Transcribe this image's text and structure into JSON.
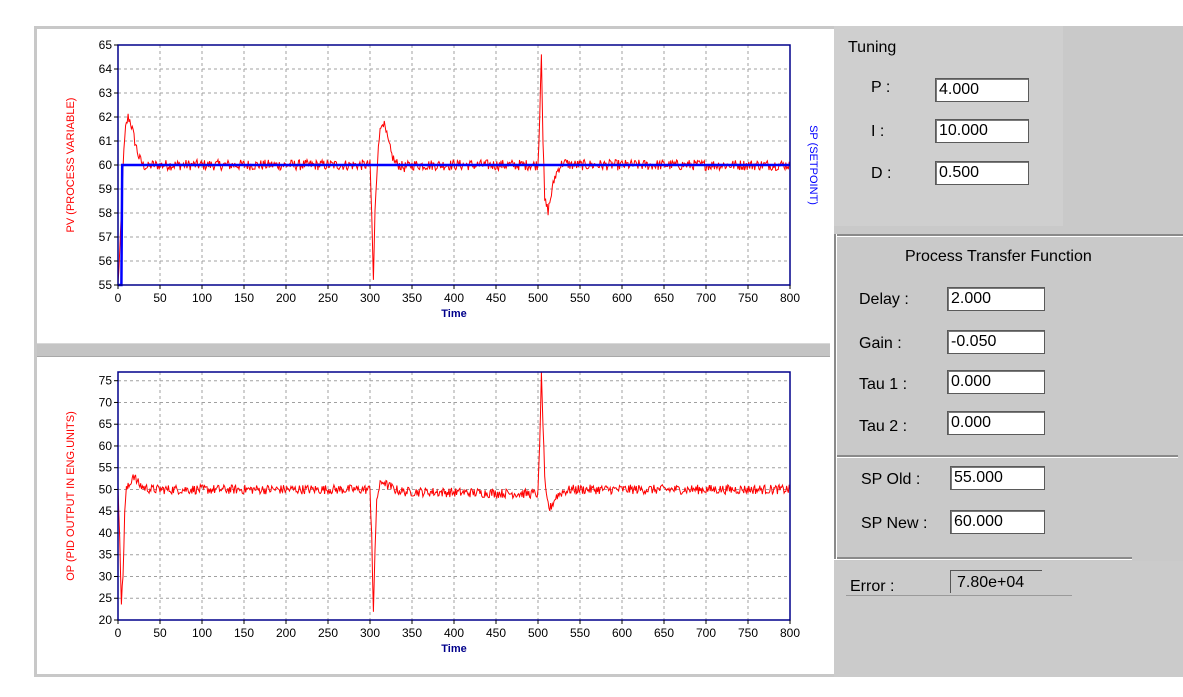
{
  "tuning": {
    "title": "Tuning",
    "p_label": "P :",
    "p_value": "4.000",
    "i_label": "I :",
    "i_value": "10.000",
    "d_label": "D :",
    "d_value": "0.500"
  },
  "transfer": {
    "title": "Process Transfer Function",
    "delay_label": "Delay :",
    "delay_value": "2.000",
    "gain_label": "Gain :",
    "gain_value": "-0.050",
    "tau1_label": "Tau 1 :",
    "tau1_value": "0.000",
    "tau2_label": "Tau 2 :",
    "tau2_value": "0.000"
  },
  "setpoint": {
    "old_label": "SP Old :",
    "old_value": "55.000",
    "new_label": "SP New :",
    "new_value": "60.000"
  },
  "error": {
    "label": "Error :",
    "value": "7.80e+04"
  },
  "colors": {
    "pv": "#ff0000",
    "sp": "#0000ff",
    "op": "#ff0000",
    "axis_frame": "#00008b",
    "grid": "#a0a0a0"
  },
  "chart_data": [
    {
      "type": "line",
      "xlabel": "Time",
      "ylabel": "PV (PROCESS VARIABLE)",
      "y2label": "SP (SETPOINT)",
      "xlim": [
        0,
        800
      ],
      "ylim": [
        55,
        65
      ],
      "xticks": [
        0,
        50,
        100,
        150,
        200,
        250,
        300,
        350,
        400,
        450,
        500,
        550,
        600,
        650,
        700,
        750,
        800
      ],
      "yticks": [
        55,
        56,
        57,
        58,
        59,
        60,
        61,
        62,
        63,
        64,
        65
      ],
      "grid": true,
      "series": [
        {
          "name": "PV (PROCESS VARIABLE)",
          "color": "#ff0000",
          "x": [
            0,
            3,
            6,
            9,
            12,
            15,
            20,
            25,
            30,
            35,
            40,
            300,
            302,
            304,
            306,
            310,
            315,
            320,
            325,
            330,
            340,
            350,
            500,
            502,
            504,
            506,
            508,
            512,
            516,
            520,
            525,
            530,
            540,
            550,
            800
          ],
          "y": [
            55,
            57,
            60,
            61.5,
            62,
            61.8,
            61,
            60.3,
            60,
            59.9,
            60,
            60,
            58,
            55.2,
            58,
            61,
            61.9,
            61.2,
            60.5,
            60.1,
            59.9,
            60,
            60,
            62,
            64.8,
            61,
            58.5,
            58.1,
            58.8,
            59.5,
            59.9,
            60.1,
            60,
            60,
            60
          ]
        },
        {
          "name": "SP (SETPOINT)",
          "color": "#0000ff",
          "x": [
            0,
            4,
            5,
            800
          ],
          "y": [
            55,
            55,
            60,
            60
          ]
        }
      ]
    },
    {
      "type": "line",
      "xlabel": "Time",
      "ylabel": "OP (PID OUTPUT IN ENG.UNITS)",
      "xlim": [
        0,
        800
      ],
      "ylim": [
        20,
        77
      ],
      "xticks": [
        0,
        50,
        100,
        150,
        200,
        250,
        300,
        350,
        400,
        450,
        500,
        550,
        600,
        650,
        700,
        750,
        800
      ],
      "yticks": [
        20,
        25,
        30,
        35,
        40,
        45,
        50,
        55,
        60,
        65,
        70,
        75
      ],
      "grid": true,
      "series": [
        {
          "name": "OP (PID OUTPUT IN ENG.UNITS)",
          "color": "#ff0000",
          "x": [
            0,
            2,
            4,
            6,
            8,
            10,
            14,
            18,
            22,
            26,
            30,
            40,
            300,
            302,
            304,
            306,
            308,
            312,
            316,
            320,
            330,
            340,
            500,
            502,
            504,
            506,
            508,
            510,
            514,
            518,
            522,
            530,
            540,
            800
          ],
          "y": [
            50,
            40,
            24,
            30,
            45,
            50,
            51,
            53.5,
            52,
            51,
            50.5,
            50,
            50,
            40,
            22,
            35,
            48,
            51,
            52,
            51,
            50,
            49.5,
            49,
            60,
            77,
            65,
            52,
            48,
            45.5,
            47,
            48.5,
            49.5,
            50,
            50
          ]
        }
      ]
    }
  ]
}
